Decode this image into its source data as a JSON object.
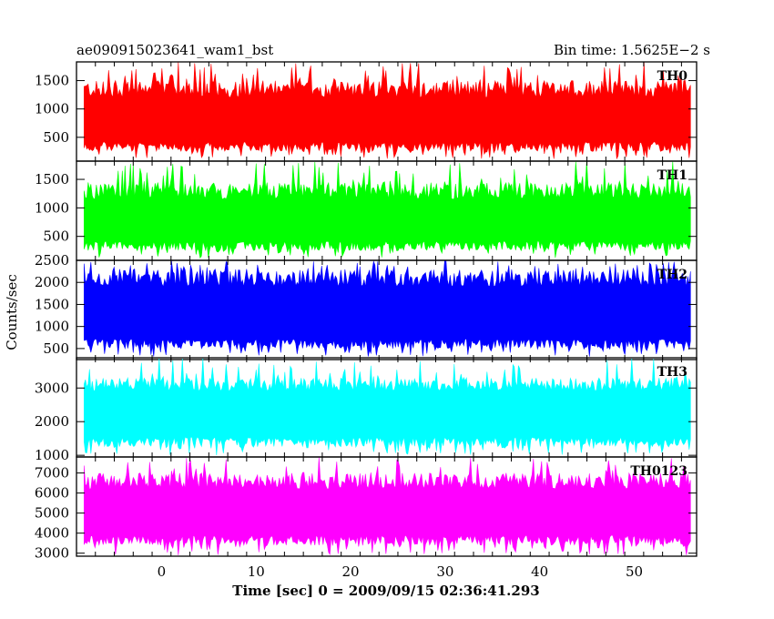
{
  "header": {
    "left_title": "ae090915023641_wam1_bst",
    "right_title": "Bin time: 1.5625E−2 s"
  },
  "chart_data": {
    "type": "line",
    "ylabel": "Counts/sec",
    "xlabel": "Time [sec] 0 = 2009/09/15 02:36:41.293",
    "xlim": [
      -9,
      56.6
    ],
    "data_x_range": [
      -8.2,
      56.0
    ],
    "x_ticks": [
      0,
      10,
      20,
      30,
      40,
      50
    ],
    "x_tick_labels": [
      "0",
      "10",
      "20",
      "30",
      "40",
      "50"
    ],
    "panels": [
      {
        "name": "TH0",
        "color": "#ff0000",
        "ylim": [
          80,
          1830
        ],
        "y_ticks": [
          500,
          1000,
          1500
        ],
        "y_tick_labels": [
          "500",
          "1000",
          "1500"
        ],
        "band_low": [
          250,
          420
        ],
        "band_high": [
          1200,
          1500
        ],
        "spike_low": 120,
        "spike_high": 1830
      },
      {
        "name": "TH1",
        "color": "#00ff00",
        "ylim": [
          80,
          1820
        ],
        "y_ticks": [
          500,
          1000,
          1500
        ],
        "y_tick_labels": [
          "500",
          "1000",
          "1500"
        ],
        "band_low": [
          250,
          420
        ],
        "band_high": [
          1150,
          1450
        ],
        "spike_low": 120,
        "spike_high": 1820
      },
      {
        "name": "TH2",
        "color": "#0000ff",
        "ylim": [
          250,
          2500
        ],
        "y_ticks": [
          500,
          1000,
          1500,
          2000,
          2500
        ],
        "y_tick_labels": [
          "500",
          "1000",
          "1500",
          "2000",
          "2500"
        ],
        "band_low": [
          500,
          720
        ],
        "band_high": [
          1900,
          2300
        ],
        "spike_low": 320,
        "spike_high": 2500
      },
      {
        "name": "TH3",
        "color": "#00ffff",
        "ylim": [
          950,
          3900
        ],
        "y_ticks": [
          1000,
          2000,
          3000
        ],
        "y_tick_labels": [
          "1000",
          "2000",
          "3000"
        ],
        "band_low": [
          1250,
          1550
        ],
        "band_high": [
          2900,
          3300
        ],
        "spike_low": 1000,
        "spike_high": 3900
      },
      {
        "name": "TH0123",
        "color": "#ff00ff",
        "ylim": [
          2850,
          7800
        ],
        "y_ticks": [
          3000,
          4000,
          5000,
          6000,
          7000
        ],
        "y_tick_labels": [
          "3000",
          "4000",
          "5000",
          "6000",
          "7000"
        ],
        "band_low": [
          3400,
          3900
        ],
        "band_high": [
          6200,
          7000
        ],
        "spike_low": 2900,
        "spike_high": 7800
      }
    ]
  }
}
